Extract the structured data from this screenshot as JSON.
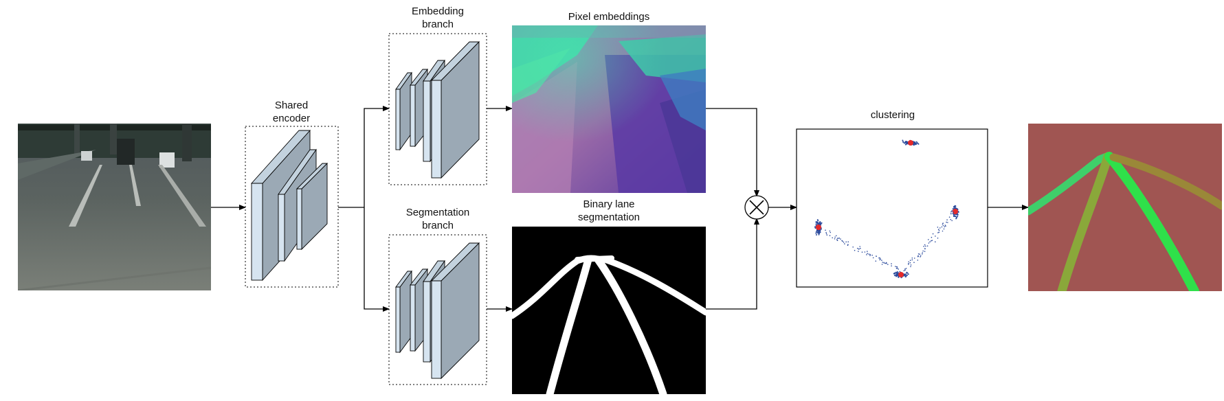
{
  "labels": {
    "shared_encoder": [
      "Shared",
      "encoder"
    ],
    "embedding_branch": [
      "Embedding",
      "branch"
    ],
    "segmentation_branch": [
      "Segmentation",
      "branch"
    ],
    "pixel_embeddings": "Pixel embeddings",
    "binary_lane_segmentation": [
      "Binary lane",
      "segmentation"
    ],
    "clustering": "clustering"
  },
  "colors": {
    "layer_front": "#d6e4f0",
    "layer_side": "#9ba9b5",
    "output_background": "#a05552",
    "lane_green_1": "#3fcf6a",
    "lane_green_2": "#2fe04a",
    "lane_olive": "#8aa83a",
    "lane_brown": "#9a8838",
    "cluster_blue": "#2b4a9c",
    "cluster_red": "#e52a2a"
  },
  "icons": {
    "combine": "circled-times-icon"
  }
}
